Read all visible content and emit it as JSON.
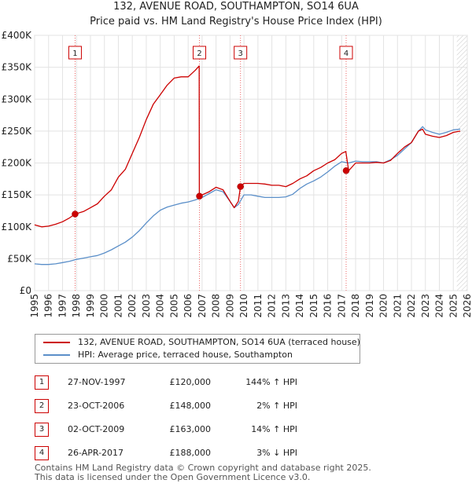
{
  "chart_data": {
    "type": "line",
    "title": "132, AVENUE ROAD, SOUTHAMPTON, SO14 6UA",
    "subtitle": "Price paid vs. HM Land Registry's House Price Index (HPI)",
    "xlabel": "",
    "ylabel": "",
    "xlim": [
      1995.0,
      2026.0
    ],
    "ylim": [
      0,
      400000
    ],
    "y_ticks": [
      0,
      50000,
      100000,
      150000,
      200000,
      250000,
      300000,
      350000,
      400000
    ],
    "y_tick_labels": [
      "£0",
      "£50K",
      "£100K",
      "£150K",
      "£200K",
      "£250K",
      "£300K",
      "£350K",
      "£400K"
    ],
    "x_ticks": [
      1995,
      1996,
      1997,
      1998,
      1999,
      2000,
      2001,
      2002,
      2003,
      2004,
      2005,
      2006,
      2007,
      2008,
      2009,
      2010,
      2011,
      2012,
      2013,
      2014,
      2015,
      2016,
      2017,
      2018,
      2019,
      2020,
      2021,
      2022,
      2023,
      2024,
      2025,
      2026
    ],
    "x_tick_labels": [
      "1995",
      "1996",
      "1997",
      "1998",
      "1999",
      "2000",
      "2001",
      "2002",
      "2003",
      "2004",
      "2005",
      "2006",
      "2007",
      "2008",
      "2009",
      "2010",
      "2011",
      "2012",
      "2013",
      "2014",
      "2015",
      "2016",
      "2017",
      "2018",
      "2019",
      "2020",
      "2021",
      "2022",
      "2023",
      "2024",
      "2025",
      "2026"
    ],
    "grid": true,
    "hatch_after": 2025.25,
    "series": [
      {
        "name": "132, AVENUE ROAD, SOUTHAMPTON, SO14 6UA (terraced house)",
        "color": "#cc0000",
        "x": [
          1995.0,
          1995.5,
          1996.0,
          1996.5,
          1997.0,
          1997.5,
          1997.9,
          1998.5,
          1999.0,
          1999.5,
          2000.0,
          2000.5,
          2001.0,
          2001.5,
          2002.0,
          2002.5,
          2003.0,
          2003.5,
          2004.0,
          2004.5,
          2005.0,
          2005.5,
          2006.0,
          2006.5,
          2006.79,
          2006.8,
          2007.0,
          2007.5,
          2008.0,
          2008.5,
          2009.0,
          2009.3,
          2009.6,
          2009.75,
          2010.0,
          2010.5,
          2011.0,
          2011.5,
          2012.0,
          2012.5,
          2013.0,
          2013.5,
          2014.0,
          2014.5,
          2015.0,
          2015.5,
          2016.0,
          2016.5,
          2017.0,
          2017.3,
          2017.5,
          2018.0,
          2018.5,
          2019.0,
          2019.5,
          2020.0,
          2020.5,
          2021.0,
          2021.5,
          2022.0,
          2022.5,
          2022.8,
          2023.0,
          2023.5,
          2024.0,
          2024.5,
          2025.0,
          2025.5
        ],
        "values": [
          103000,
          100000,
          101000,
          104000,
          108000,
          114000,
          120000,
          124000,
          130000,
          136000,
          148000,
          158000,
          178000,
          190000,
          215000,
          240000,
          268000,
          292000,
          307000,
          322000,
          333000,
          335000,
          335000,
          345000,
          352000,
          148000,
          150000,
          155000,
          162000,
          158000,
          140000,
          130000,
          140000,
          163000,
          168000,
          168000,
          168000,
          167000,
          165000,
          165000,
          163000,
          168000,
          175000,
          180000,
          188000,
          193000,
          200000,
          205000,
          215000,
          218000,
          188000,
          200000,
          200000,
          200000,
          201000,
          200000,
          204000,
          215000,
          225000,
          232000,
          250000,
          253000,
          245000,
          242000,
          240000,
          243000,
          248000,
          250000
        ]
      },
      {
        "name": "HPI: Average price, terraced house, Southampton",
        "color": "#5b8fc9",
        "x": [
          1995.0,
          1995.5,
          1996.0,
          1996.5,
          1997.0,
          1997.5,
          1998.0,
          1998.5,
          1999.0,
          1999.5,
          2000.0,
          2000.5,
          2001.0,
          2001.5,
          2002.0,
          2002.5,
          2003.0,
          2003.5,
          2004.0,
          2004.5,
          2005.0,
          2005.5,
          2006.0,
          2006.5,
          2007.0,
          2007.5,
          2008.0,
          2008.5,
          2009.0,
          2009.3,
          2009.6,
          2010.0,
          2010.5,
          2011.0,
          2011.5,
          2012.0,
          2012.5,
          2013.0,
          2013.5,
          2014.0,
          2014.5,
          2015.0,
          2015.5,
          2016.0,
          2016.5,
          2017.0,
          2017.5,
          2018.0,
          2018.5,
          2019.0,
          2019.5,
          2020.0,
          2020.5,
          2021.0,
          2021.5,
          2022.0,
          2022.5,
          2022.8,
          2023.0,
          2023.5,
          2024.0,
          2024.5,
          2025.0,
          2025.5
        ],
        "values": [
          42000,
          41000,
          41000,
          42000,
          44000,
          46000,
          49000,
          51000,
          53000,
          55000,
          59000,
          64000,
          70000,
          76000,
          84000,
          94000,
          106000,
          117000,
          126000,
          131000,
          134000,
          137000,
          139000,
          142000,
          146000,
          152000,
          158000,
          155000,
          140000,
          130000,
          135000,
          150000,
          150000,
          148000,
          146000,
          146000,
          146000,
          147000,
          151000,
          160000,
          167000,
          172000,
          178000,
          186000,
          195000,
          202000,
          200000,
          203000,
          202000,
          202000,
          202000,
          200000,
          205000,
          212000,
          222000,
          232000,
          250000,
          257000,
          252000,
          248000,
          245000,
          248000,
          252000,
          253000
        ]
      }
    ],
    "markers": [
      {
        "label": "1",
        "x": 1997.9,
        "price": 120000
      },
      {
        "label": "2",
        "x": 2006.81,
        "price": 148000
      },
      {
        "label": "3",
        "x": 2009.75,
        "price": 163000
      },
      {
        "label": "4",
        "x": 2017.32,
        "price": 188000
      }
    ]
  },
  "legend": {
    "price_label": "132, AVENUE ROAD, SOUTHAMPTON, SO14 6UA (terraced house)",
    "hpi_label": "HPI: Average price, terraced house, Southampton"
  },
  "transactions": [
    {
      "num": "1",
      "date": "27-NOV-1997",
      "price": "£120,000",
      "hpi": "144% ↑ HPI"
    },
    {
      "num": "2",
      "date": "23-OCT-2006",
      "price": "£148,000",
      "hpi": "2% ↑ HPI"
    },
    {
      "num": "3",
      "date": "02-OCT-2009",
      "price": "£163,000",
      "hpi": "14% ↑ HPI"
    },
    {
      "num": "4",
      "date": "26-APR-2017",
      "price": "£188,000",
      "hpi": "3% ↓ HPI"
    }
  ],
  "footer": {
    "line1": "Contains HM Land Registry data © Crown copyright and database right 2025.",
    "line2": "This data is licensed under the Open Government Licence v3.0."
  }
}
